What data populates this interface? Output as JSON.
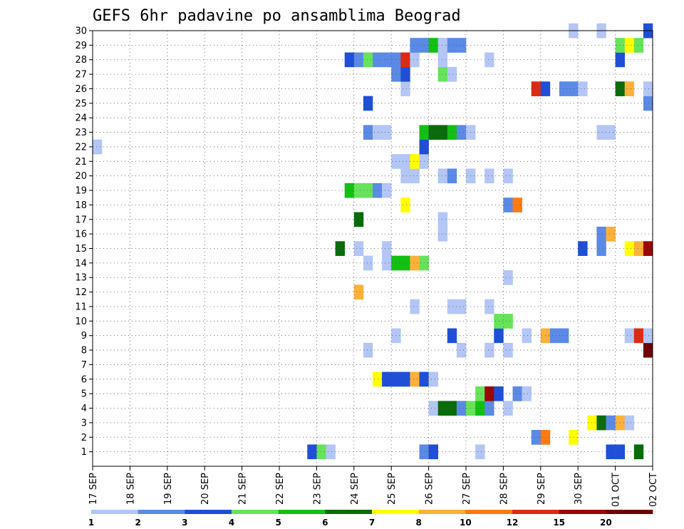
{
  "chart_data": {
    "type": "heatmap",
    "title": "GEFS 6hr padavine po ansamblima Beograd",
    "xlabel": "",
    "ylabel": "",
    "y_tick_labels": [
      "1",
      "2",
      "3",
      "4",
      "5",
      "6",
      "7",
      "8",
      "9",
      "10",
      "11",
      "12",
      "13",
      "14",
      "15",
      "16",
      "17",
      "18",
      "19",
      "20",
      "21",
      "22",
      "23",
      "24",
      "25",
      "26",
      "27",
      "28",
      "29",
      "30"
    ],
    "x_tick_labels": [
      "17 SEP",
      "18 SEP",
      "19 SEP",
      "20 SEP",
      "21 SEP",
      "22 SEP",
      "23 SEP",
      "24 SEP",
      "25 SEP",
      "26 SEP",
      "27 SEP",
      "28 SEP",
      "29 SEP",
      "30 SEP",
      "01 OCT",
      "02 OCT"
    ],
    "x_range_steps": [
      0,
      60
    ],
    "y_range": [
      0,
      30
    ],
    "grid": true,
    "colorbar": {
      "placement": "bottom",
      "labels": [
        "1",
        "2",
        "3",
        "4",
        "5",
        "6",
        "7",
        "8",
        "10",
        "12",
        "15",
        "20"
      ],
      "colors": [
        "#b3c6f5",
        "#5b8ae6",
        "#1f4fd8",
        "#66e35a",
        "#12c012",
        "#0a6b0a",
        "#ffff00",
        "#fbb13a",
        "#ff7a10",
        "#dd2a12",
        "#9c0505",
        "#6e0000"
      ]
    },
    "cells": [
      {
        "member": 1,
        "step": 24,
        "level": 3
      },
      {
        "member": 1,
        "step": 25,
        "level": 4
      },
      {
        "member": 1,
        "step": 26,
        "level": 1
      },
      {
        "member": 1,
        "step": 36,
        "level": 2
      },
      {
        "member": 1,
        "step": 37,
        "level": 3
      },
      {
        "member": 1,
        "step": 42,
        "level": 1
      },
      {
        "member": 1,
        "step": 56,
        "level": 3
      },
      {
        "member": 1,
        "step": 57,
        "level": 3
      },
      {
        "member": 1,
        "step": 59,
        "level": 6
      },
      {
        "member": 2,
        "step": 48,
        "level": 2
      },
      {
        "member": 2,
        "step": 49,
        "level": 9
      },
      {
        "member": 2,
        "step": 52,
        "level": 7
      },
      {
        "member": 3,
        "step": 54,
        "level": 7
      },
      {
        "member": 3,
        "step": 55,
        "level": 6
      },
      {
        "member": 3,
        "step": 56,
        "level": 2
      },
      {
        "member": 3,
        "step": 57,
        "level": 8
      },
      {
        "member": 3,
        "step": 58,
        "level": 1
      },
      {
        "member": 4,
        "step": 37,
        "level": 1
      },
      {
        "member": 4,
        "step": 38,
        "level": 6
      },
      {
        "member": 4,
        "step": 39,
        "level": 6
      },
      {
        "member": 4,
        "step": 40,
        "level": 2
      },
      {
        "member": 4,
        "step": 41,
        "level": 4
      },
      {
        "member": 4,
        "step": 42,
        "level": 5
      },
      {
        "member": 4,
        "step": 43,
        "level": 2
      },
      {
        "member": 4,
        "step": 45,
        "level": 1
      },
      {
        "member": 5,
        "step": 42,
        "level": 4
      },
      {
        "member": 5,
        "step": 43,
        "level": 11
      },
      {
        "member": 5,
        "step": 44,
        "level": 3
      },
      {
        "member": 5,
        "step": 46,
        "level": 2
      },
      {
        "member": 5,
        "step": 47,
        "level": 1
      },
      {
        "member": 6,
        "step": 31,
        "level": 7
      },
      {
        "member": 6,
        "step": 32,
        "level": 3
      },
      {
        "member": 6,
        "step": 33,
        "level": 3
      },
      {
        "member": 6,
        "step": 34,
        "level": 3
      },
      {
        "member": 6,
        "step": 35,
        "level": 8
      },
      {
        "member": 6,
        "step": 36,
        "level": 3
      },
      {
        "member": 6,
        "step": 37,
        "level": 1
      },
      {
        "member": 8,
        "step": 30,
        "level": 1
      },
      {
        "member": 8,
        "step": 40,
        "level": 1
      },
      {
        "member": 8,
        "step": 43,
        "level": 1
      },
      {
        "member": 8,
        "step": 45,
        "level": 1
      },
      {
        "member": 8,
        "step": 60,
        "level": 12
      },
      {
        "member": 9,
        "step": 33,
        "level": 1
      },
      {
        "member": 9,
        "step": 39,
        "level": 3
      },
      {
        "member": 9,
        "step": 44,
        "level": 3
      },
      {
        "member": 9,
        "step": 47,
        "level": 1
      },
      {
        "member": 9,
        "step": 49,
        "level": 8
      },
      {
        "member": 9,
        "step": 50,
        "level": 2
      },
      {
        "member": 9,
        "step": 51,
        "level": 2
      },
      {
        "member": 9,
        "step": 58,
        "level": 1
      },
      {
        "member": 9,
        "step": 59,
        "level": 10
      },
      {
        "member": 9,
        "step": 60,
        "level": 1
      },
      {
        "member": 10,
        "step": 44,
        "level": 4
      },
      {
        "member": 10,
        "step": 45,
        "level": 4
      },
      {
        "member": 11,
        "step": 35,
        "level": 1
      },
      {
        "member": 11,
        "step": 39,
        "level": 1
      },
      {
        "member": 11,
        "step": 40,
        "level": 1
      },
      {
        "member": 11,
        "step": 43,
        "level": 1
      },
      {
        "member": 12,
        "step": 29,
        "level": 8
      },
      {
        "member": 13,
        "step": 45,
        "level": 1
      },
      {
        "member": 14,
        "step": 30,
        "level": 1
      },
      {
        "member": 14,
        "step": 32,
        "level": 1
      },
      {
        "member": 14,
        "step": 33,
        "level": 5
      },
      {
        "member": 14,
        "step": 34,
        "level": 5
      },
      {
        "member": 14,
        "step": 35,
        "level": 8
      },
      {
        "member": 14,
        "step": 36,
        "level": 4
      },
      {
        "member": 15,
        "step": 27,
        "level": 6
      },
      {
        "member": 15,
        "step": 29,
        "level": 1
      },
      {
        "member": 15,
        "step": 32,
        "level": 1
      },
      {
        "member": 15,
        "step": 53,
        "level": 3
      },
      {
        "member": 15,
        "step": 55,
        "level": 2
      },
      {
        "member": 15,
        "step": 58,
        "level": 7
      },
      {
        "member": 15,
        "step": 59,
        "level": 8
      },
      {
        "member": 15,
        "step": 60,
        "level": 11
      },
      {
        "member": 16,
        "step": 38,
        "level": 1
      },
      {
        "member": 16,
        "step": 55,
        "level": 2
      },
      {
        "member": 16,
        "step": 56,
        "level": 8
      },
      {
        "member": 17,
        "step": 29,
        "level": 6
      },
      {
        "member": 17,
        "step": 38,
        "level": 1
      },
      {
        "member": 18,
        "step": 34,
        "level": 7
      },
      {
        "member": 18,
        "step": 45,
        "level": 2
      },
      {
        "member": 18,
        "step": 46,
        "level": 9
      },
      {
        "member": 19,
        "step": 28,
        "level": 5
      },
      {
        "member": 19,
        "step": 29,
        "level": 4
      },
      {
        "member": 19,
        "step": 30,
        "level": 4
      },
      {
        "member": 19,
        "step": 31,
        "level": 2
      },
      {
        "member": 19,
        "step": 32,
        "level": 1
      },
      {
        "member": 20,
        "step": 34,
        "level": 1
      },
      {
        "member": 20,
        "step": 35,
        "level": 1
      },
      {
        "member": 20,
        "step": 38,
        "level": 1
      },
      {
        "member": 20,
        "step": 39,
        "level": 2
      },
      {
        "member": 20,
        "step": 41,
        "level": 1
      },
      {
        "member": 20,
        "step": 43,
        "level": 1
      },
      {
        "member": 20,
        "step": 45,
        "level": 1
      },
      {
        "member": 21,
        "step": 33,
        "level": 1
      },
      {
        "member": 21,
        "step": 34,
        "level": 1
      },
      {
        "member": 21,
        "step": 35,
        "level": 7
      },
      {
        "member": 21,
        "step": 36,
        "level": 1
      },
      {
        "member": 22,
        "step": 1,
        "level": 1
      },
      {
        "member": 22,
        "step": 36,
        "level": 3
      },
      {
        "member": 23,
        "step": 30,
        "level": 2
      },
      {
        "member": 23,
        "step": 31,
        "level": 1
      },
      {
        "member": 23,
        "step": 32,
        "level": 1
      },
      {
        "member": 23,
        "step": 36,
        "level": 5
      },
      {
        "member": 23,
        "step": 37,
        "level": 6
      },
      {
        "member": 23,
        "step": 38,
        "level": 6
      },
      {
        "member": 23,
        "step": 39,
        "level": 5
      },
      {
        "member": 23,
        "step": 40,
        "level": 2
      },
      {
        "member": 23,
        "step": 41,
        "level": 1
      },
      {
        "member": 23,
        "step": 55,
        "level": 1
      },
      {
        "member": 23,
        "step": 56,
        "level": 1
      },
      {
        "member": 25,
        "step": 30,
        "level": 3
      },
      {
        "member": 25,
        "step": 60,
        "level": 2
      },
      {
        "member": 26,
        "step": 34,
        "level": 1
      },
      {
        "member": 26,
        "step": 48,
        "level": 10
      },
      {
        "member": 26,
        "step": 49,
        "level": 3
      },
      {
        "member": 26,
        "step": 51,
        "level": 2
      },
      {
        "member": 26,
        "step": 52,
        "level": 2
      },
      {
        "member": 26,
        "step": 53,
        "level": 1
      },
      {
        "member": 26,
        "step": 57,
        "level": 6
      },
      {
        "member": 26,
        "step": 58,
        "level": 8
      },
      {
        "member": 26,
        "step": 60,
        "level": 1
      },
      {
        "member": 27,
        "step": 33,
        "level": 2
      },
      {
        "member": 27,
        "step": 34,
        "level": 3
      },
      {
        "member": 27,
        "step": 38,
        "level": 4
      },
      {
        "member": 27,
        "step": 39,
        "level": 1
      },
      {
        "member": 28,
        "step": 28,
        "level": 3
      },
      {
        "member": 28,
        "step": 29,
        "level": 2
      },
      {
        "member": 28,
        "step": 30,
        "level": 4
      },
      {
        "member": 28,
        "step": 31,
        "level": 2
      },
      {
        "member": 28,
        "step": 32,
        "level": 2
      },
      {
        "member": 28,
        "step": 33,
        "level": 2
      },
      {
        "member": 28,
        "step": 34,
        "level": 10
      },
      {
        "member": 28,
        "step": 35,
        "level": 1
      },
      {
        "member": 28,
        "step": 38,
        "level": 1
      },
      {
        "member": 28,
        "step": 43,
        "level": 1
      },
      {
        "member": 28,
        "step": 57,
        "level": 3
      },
      {
        "member": 29,
        "step": 35,
        "level": 2
      },
      {
        "member": 29,
        "step": 36,
        "level": 2
      },
      {
        "member": 29,
        "step": 37,
        "level": 5
      },
      {
        "member": 29,
        "step": 38,
        "level": 1
      },
      {
        "member": 29,
        "step": 39,
        "level": 2
      },
      {
        "member": 29,
        "step": 40,
        "level": 2
      },
      {
        "member": 29,
        "step": 57,
        "level": 4
      },
      {
        "member": 29,
        "step": 58,
        "level": 7
      },
      {
        "member": 29,
        "step": 59,
        "level": 4
      },
      {
        "member": 30,
        "step": 52,
        "level": 1
      },
      {
        "member": 30,
        "step": 55,
        "level": 1
      },
      {
        "member": 30,
        "step": 60,
        "level": 3
      }
    ]
  }
}
